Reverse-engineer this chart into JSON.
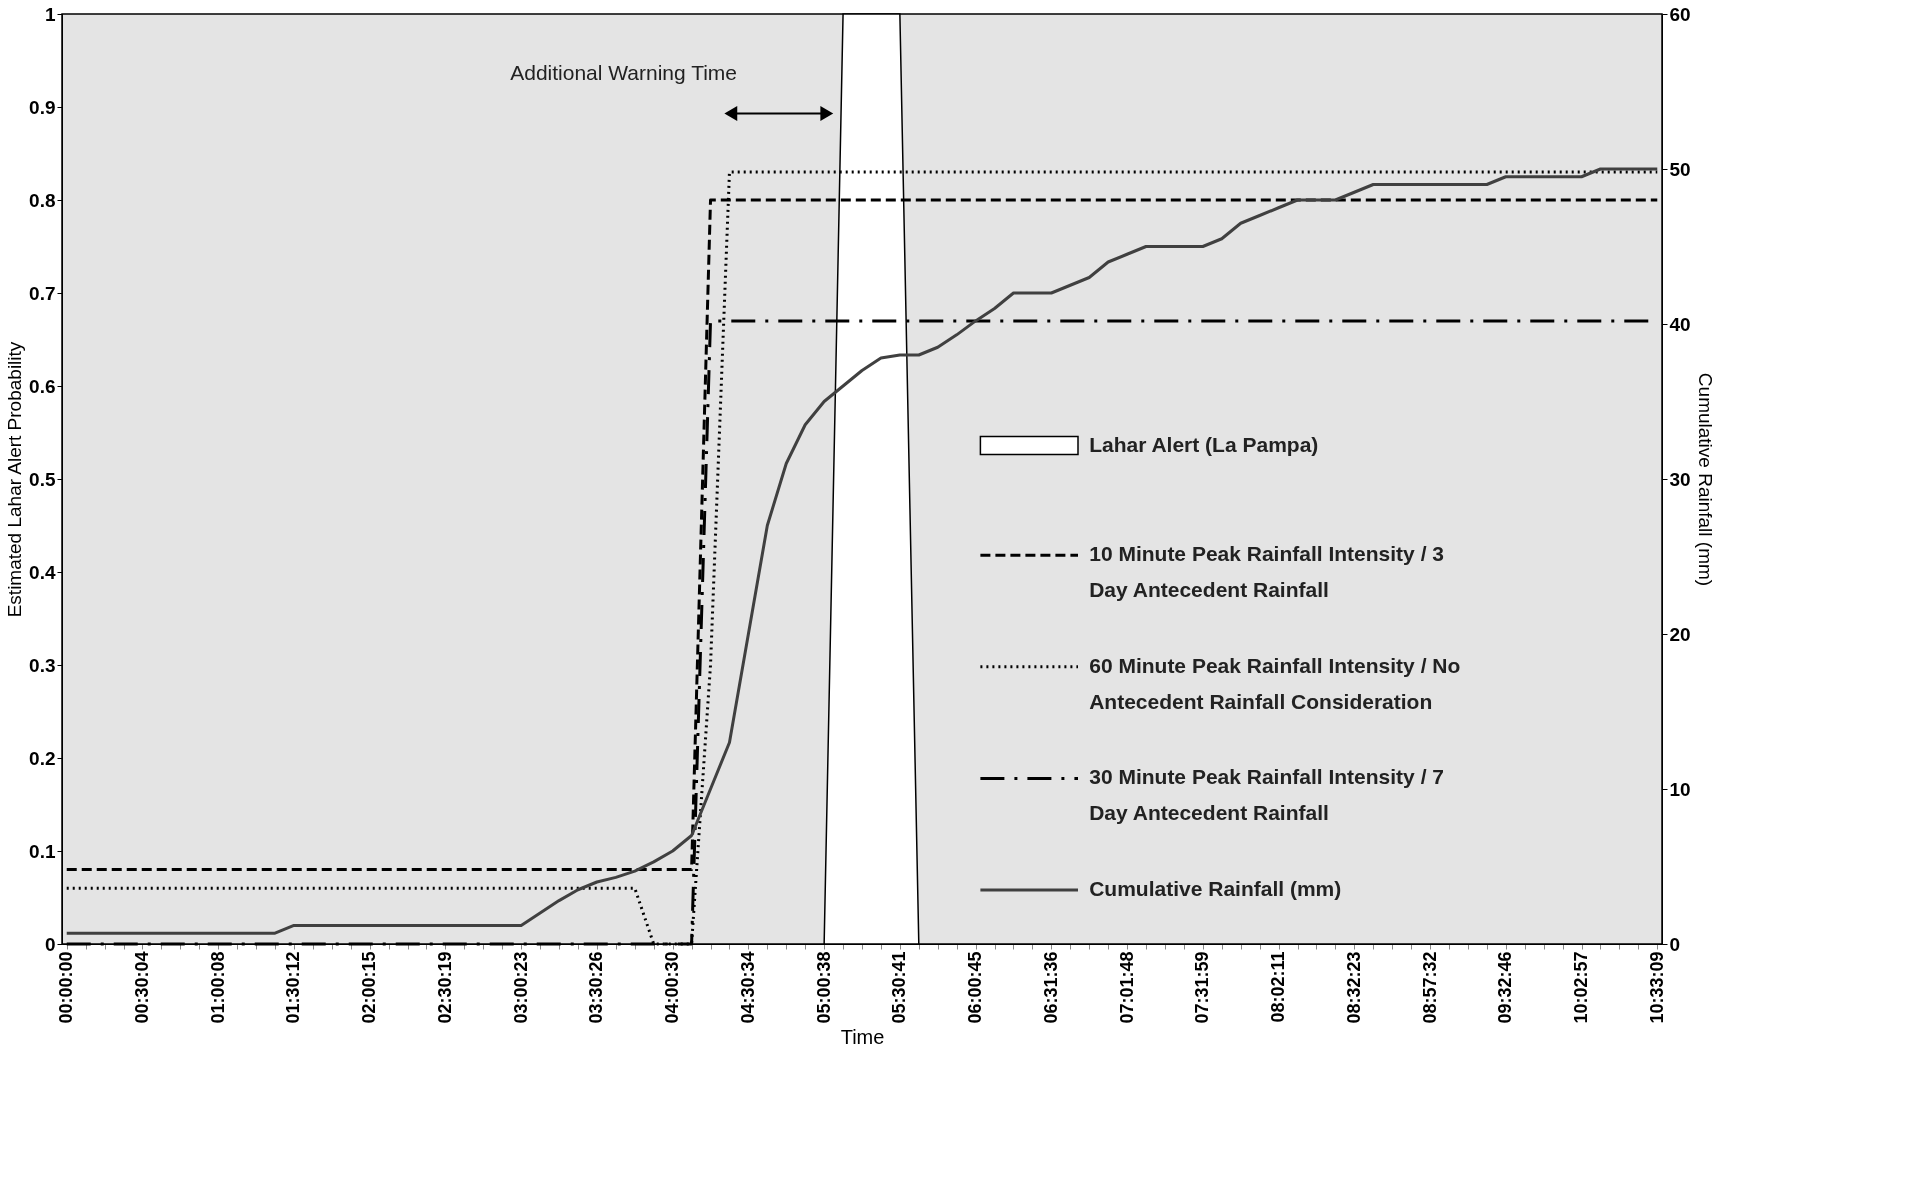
{
  "chart_data": {
    "type": "line",
    "xlabel": "Time",
    "ylabel": "Estimated Lahar Alert Probability",
    "y2label": "Cumulative Rainfall (mm)",
    "annotations": [
      "Additional Warning Time"
    ],
    "categories": [
      "00:00:00",
      null,
      null,
      null,
      "00:30:04",
      null,
      null,
      null,
      "01:00:08",
      null,
      null,
      null,
      "01:30:12",
      null,
      null,
      null,
      "02:00:15",
      null,
      null,
      null,
      "02:30:19",
      null,
      null,
      null,
      "03:00:23",
      null,
      null,
      null,
      "03:30:26",
      null,
      null,
      null,
      "04:00:30",
      null,
      null,
      null,
      "04:30:34",
      null,
      null,
      null,
      "05:00:38",
      null,
      null,
      null,
      "05:30:41",
      null,
      null,
      null,
      "06:00:45",
      null,
      null,
      null,
      "06:31:36",
      null,
      null,
      null,
      "07:01:48",
      null,
      null,
      null,
      "07:31:59",
      null,
      null,
      null,
      "08:02:11",
      null,
      null,
      null,
      "08:32:23",
      null,
      null,
      null,
      "08:57:32",
      null,
      null,
      null,
      "09:32:46",
      null,
      null,
      null,
      "10:02:57",
      null,
      null,
      null,
      "10:33:09"
    ],
    "series": [
      {
        "name": "Lahar Alert (La Pampa)",
        "type": "area",
        "color": "#ffffff",
        "values": [
          null,
          null,
          null,
          null,
          null,
          null,
          null,
          null,
          null,
          null,
          null,
          null,
          null,
          null,
          null,
          null,
          null,
          null,
          null,
          null,
          null,
          null,
          null,
          null,
          null,
          null,
          null,
          null,
          null,
          null,
          null,
          null,
          null,
          null,
          null,
          null,
          null,
          null,
          null,
          null,
          0,
          1,
          1,
          1,
          1,
          0,
          null,
          null,
          null,
          null,
          null,
          null,
          null,
          null,
          null,
          null,
          null,
          null,
          null,
          null,
          null,
          null,
          null,
          null,
          null,
          null,
          null,
          null,
          null,
          null,
          null,
          null,
          null,
          null,
          null,
          null,
          null,
          null,
          null,
          null,
          null,
          null,
          null,
          null,
          null
        ]
      },
      {
        "name": "10 Minute Peak Rainfall Intensity / 3 Day Antecedent Rainfall",
        "line_style": "dashed",
        "color": "#000000",
        "values": [
          0.08,
          0.08,
          0.08,
          0.08,
          0.08,
          0.08,
          0.08,
          0.08,
          0.08,
          0.08,
          0.08,
          0.08,
          0.08,
          0.08,
          0.08,
          0.08,
          0.08,
          0.08,
          0.08,
          0.08,
          0.08,
          0.08,
          0.08,
          0.08,
          0.08,
          0.08,
          0.08,
          0.08,
          0.08,
          0.08,
          0.08,
          0.08,
          0.08,
          0.08,
          0.8,
          0.8,
          0.8,
          0.8,
          0.8,
          0.8,
          0.8,
          0.8,
          0.8,
          0.8,
          0.8,
          0.8,
          0.8,
          0.8,
          0.8,
          0.8,
          0.8,
          0.8,
          0.8,
          0.8,
          0.8,
          0.8,
          0.8,
          0.8,
          0.8,
          0.8,
          0.8,
          0.8,
          0.8,
          0.8,
          0.8,
          0.8,
          0.8,
          0.8,
          0.8,
          0.8,
          0.8,
          0.8,
          0.8,
          0.8,
          0.8,
          0.8,
          0.8,
          0.8,
          0.8,
          0.8,
          0.8,
          0.8,
          0.8,
          0.8,
          0.8
        ]
      },
      {
        "name": "60 Minute Peak Rainfall Intensity / No Antecedent Rainfall Consideration",
        "line_style": "dotted",
        "color": "#000000",
        "values": [
          0.06,
          0.06,
          0.06,
          0.06,
          0.06,
          0.06,
          0.06,
          0.06,
          0.06,
          0.06,
          0.06,
          0.06,
          0.06,
          0.06,
          0.06,
          0.06,
          0.06,
          0.06,
          0.06,
          0.06,
          0.06,
          0.06,
          0.06,
          0.06,
          0.06,
          0.06,
          0.06,
          0.06,
          0.06,
          0.06,
          0.06,
          0,
          0,
          0,
          0.3,
          0.83,
          0.83,
          0.83,
          0.83,
          0.83,
          0.83,
          0.83,
          0.83,
          0.83,
          0.83,
          0.83,
          0.83,
          0.83,
          0.83,
          0.83,
          0.83,
          0.83,
          0.83,
          0.83,
          0.83,
          0.83,
          0.83,
          0.83,
          0.83,
          0.83,
          0.83,
          0.83,
          0.83,
          0.83,
          0.83,
          0.83,
          0.83,
          0.83,
          0.83,
          0.83,
          0.83,
          0.83,
          0.83,
          0.83,
          0.83,
          0.83,
          0.83,
          0.83,
          0.83,
          0.83,
          0.83,
          0.83,
          0.83,
          0.83,
          0.83
        ]
      },
      {
        "name": "30 Minute Peak Rainfall Intensity / 7 Day Antecedent Rainfall",
        "line_style": "dashdot",
        "color": "#000000",
        "values": [
          0,
          0,
          0,
          0,
          0,
          0,
          0,
          0,
          0,
          0,
          0,
          0,
          0,
          0,
          0,
          0,
          0,
          0,
          0,
          0,
          0,
          0,
          0,
          0,
          0,
          0,
          0,
          0,
          0,
          0,
          0,
          0,
          0,
          0,
          0.67,
          0.67,
          0.67,
          0.67,
          0.67,
          0.67,
          0.67,
          0.67,
          0.67,
          0.67,
          0.67,
          0.67,
          0.67,
          0.67,
          0.67,
          0.67,
          0.67,
          0.67,
          0.67,
          0.67,
          0.67,
          0.67,
          0.67,
          0.67,
          0.67,
          0.67,
          0.67,
          0.67,
          0.67,
          0.67,
          0.67,
          0.67,
          0.67,
          0.67,
          0.67,
          0.67,
          0.67,
          0.67,
          0.67,
          0.67,
          0.67,
          0.67,
          0.67,
          0.67,
          0.67,
          0.67,
          0.67,
          0.67,
          0.67,
          0.67,
          0.67
        ]
      },
      {
        "name": "Cumulative Rainfall (mm)",
        "line_style": "solid",
        "axis": "y2",
        "color": "#404040",
        "values": [
          0.7,
          0.7,
          0.7,
          0.7,
          0.7,
          0.7,
          0.7,
          0.7,
          0.7,
          0.7,
          0.7,
          0.7,
          1.2,
          1.2,
          1.2,
          1.2,
          1.2,
          1.2,
          1.2,
          1.2,
          1.2,
          1.2,
          1.2,
          1.2,
          1.2,
          2,
          2.8,
          3.5,
          4,
          4.3,
          4.7,
          5.3,
          6,
          7,
          10,
          13,
          20,
          27,
          31,
          33.5,
          35,
          36,
          37,
          37.8,
          38,
          38,
          38.5,
          39.3,
          40.2,
          41,
          42,
          42,
          42,
          42.5,
          43,
          44,
          44.5,
          45,
          45,
          45,
          45,
          45.5,
          46.5,
          47,
          47.5,
          48,
          48,
          48,
          48.5,
          49,
          49,
          49,
          49,
          49,
          49,
          49,
          49.5,
          49.5,
          49.5,
          49.5,
          49.5,
          50,
          50,
          50,
          50
        ]
      }
    ],
    "ylim": [
      0,
      1
    ],
    "yticks": [
      0,
      0.1,
      0.2,
      0.3,
      0.4,
      0.5,
      0.6,
      0.7,
      0.8,
      0.9,
      1
    ],
    "y2lim": [
      0,
      60
    ],
    "y2ticks": [
      0,
      10,
      20,
      30,
      40,
      50,
      60
    ],
    "grid": false,
    "legend": "right",
    "marker": "none"
  }
}
